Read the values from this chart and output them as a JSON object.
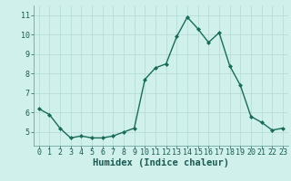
{
  "x": [
    0,
    1,
    2,
    3,
    4,
    5,
    6,
    7,
    8,
    9,
    10,
    11,
    12,
    13,
    14,
    15,
    16,
    17,
    18,
    19,
    20,
    21,
    22,
    23
  ],
  "y": [
    6.2,
    5.9,
    5.2,
    4.7,
    4.8,
    4.7,
    4.7,
    4.8,
    5.0,
    5.2,
    7.7,
    8.3,
    8.5,
    9.9,
    10.9,
    10.3,
    9.6,
    10.1,
    8.4,
    7.4,
    5.8,
    5.5,
    5.1,
    5.2
  ],
  "line_color": "#1a6b5a",
  "marker": "D",
  "markersize": 2.0,
  "linewidth": 1.0,
  "bg_color": "#cff0eb",
  "grid_color": "#b8ddd8",
  "xlabel": "Humidex (Indice chaleur)",
  "xlabel_fontsize": 7.5,
  "yticks": [
    5,
    6,
    7,
    8,
    9,
    10,
    11
  ],
  "xticks": [
    0,
    1,
    2,
    3,
    4,
    5,
    6,
    7,
    8,
    9,
    10,
    11,
    12,
    13,
    14,
    15,
    16,
    17,
    18,
    19,
    20,
    21,
    22,
    23
  ],
  "ylim": [
    4.3,
    11.5
  ],
  "xlim": [
    -0.5,
    23.5
  ],
  "tick_fontsize": 6.0,
  "tick_color": "#1a5a52",
  "label_color": "#1a5a52"
}
